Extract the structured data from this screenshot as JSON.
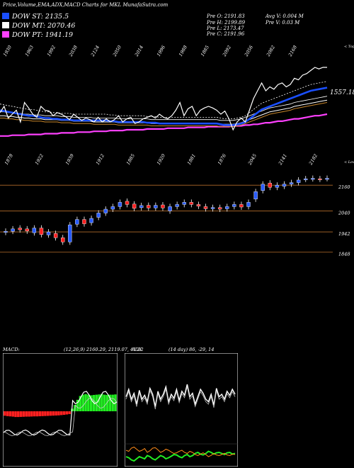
{
  "title": "Price,Volume,EMA,ADX,MACD Charts for MKL MunafaSutra.com",
  "legend": [
    {
      "text": "DOW ST: 2135.5",
      "color": "#1a4fff"
    },
    {
      "text": "DOW MT: 2070.46",
      "color": "#ffffff"
    },
    {
      "text": "DOW PT: 1941.19",
      "color": "#ff40ff"
    }
  ],
  "stats": {
    "pre_o": "Pre  O: 2191.83",
    "pre_h": "Pre  H: 2199.89",
    "pre_l": "Pre  L: 2173.47",
    "pre_c": "Pre  C: 2191.96",
    "avg_v": "Avg V: 0.004  M",
    "pre_v": "Pre  V: 0.03 M"
  },
  "colors": {
    "up": "#2a5cff",
    "down": "#ff2020",
    "ema_st": "#1a4fff",
    "ema_pt": "#ff40ff",
    "grid": "#b06a2a"
  },
  "chart_data": [
    {
      "type": "line",
      "name": "EMA panel",
      "top_labels": [
        "1930",
        "1963",
        "1992",
        "2038",
        "2124",
        "2050",
        "2014",
        "1996",
        "1988",
        "1885",
        "2092",
        "2056",
        "2082",
        "2168"
      ],
      "bottom_labels": [
        "1878",
        "1922",
        "1939",
        "1912",
        "1885",
        "1920",
        "1881",
        "1876",
        "2045",
        "2141",
        "2182"
      ],
      "value_label": "1557.18",
      "axis_top_label": "< Tops",
      "axis_bottom_label": "< Lows",
      "series": [
        {
          "name": "price",
          "values": [
            0.42,
            0.5,
            0.35,
            0.4,
            0.45,
            0.3,
            0.55,
            0.48,
            0.4,
            0.36,
            0.5,
            0.45,
            0.44,
            0.38,
            0.42,
            0.4,
            0.37,
            0.33,
            0.4,
            0.36,
            0.32,
            0.35,
            0.33,
            0.3,
            0.36,
            0.3,
            0.34,
            0.3,
            0.33,
            0.38,
            0.3,
            0.34,
            0.36,
            0.28,
            0.3,
            0.34,
            0.36,
            0.38,
            0.35,
            0.4,
            0.36,
            0.34,
            0.38,
            0.45,
            0.55,
            0.38,
            0.47,
            0.5,
            0.38,
            0.45,
            0.48,
            0.5,
            0.48,
            0.45,
            0.4,
            0.44,
            0.34,
            0.2,
            0.3,
            0.35,
            0.3,
            0.45,
            0.6,
            0.7,
            0.8,
            0.7,
            0.75,
            0.72,
            0.78,
            0.8,
            0.75,
            0.78,
            0.86,
            0.84,
            0.9,
            0.92,
            0.96,
            1.0,
            0.98,
            1.0,
            1.0
          ]
        },
        {
          "name": "ema_st",
          "values": [
            0.45,
            0.44,
            0.43,
            0.42,
            0.41,
            0.4,
            0.39,
            0.38,
            0.38,
            0.37,
            0.36,
            0.35,
            0.35,
            0.34,
            0.34,
            0.33,
            0.33,
            0.33,
            0.32,
            0.32,
            0.32,
            0.32,
            0.32,
            0.32,
            0.32,
            0.32,
            0.32,
            0.31,
            0.31,
            0.3,
            0.3,
            0.3,
            0.3,
            0.3,
            0.3,
            0.3,
            0.29,
            0.29,
            0.29,
            0.28,
            0.28,
            0.28,
            0.28,
            0.28,
            0.28,
            0.28,
            0.28,
            0.28,
            0.28,
            0.28,
            0.28,
            0.28,
            0.28,
            0.28,
            0.27,
            0.26,
            0.26,
            0.26,
            0.27,
            0.28,
            0.3,
            0.34,
            0.38,
            0.42,
            0.46,
            0.48,
            0.5,
            0.52,
            0.54,
            0.56,
            0.58,
            0.6,
            0.62,
            0.64,
            0.66,
            0.68,
            0.7,
            0.71,
            0.72,
            0.73,
            0.74
          ]
        },
        {
          "name": "ema_mt",
          "values": [
            0.38,
            0.38,
            0.37,
            0.37,
            0.36,
            0.36,
            0.35,
            0.35,
            0.34,
            0.34,
            0.34,
            0.33,
            0.33,
            0.33,
            0.33,
            0.32,
            0.32,
            0.32,
            0.31,
            0.31,
            0.31,
            0.31,
            0.31,
            0.3,
            0.3,
            0.3,
            0.3,
            0.3,
            0.3,
            0.29,
            0.29,
            0.29,
            0.29,
            0.29,
            0.29,
            0.29,
            0.29,
            0.28,
            0.28,
            0.28,
            0.28,
            0.28,
            0.28,
            0.28,
            0.28,
            0.28,
            0.28,
            0.28,
            0.28,
            0.28,
            0.28,
            0.28,
            0.28,
            0.28,
            0.27,
            0.27,
            0.27,
            0.27,
            0.28,
            0.29,
            0.31,
            0.33,
            0.35,
            0.37,
            0.39,
            0.41,
            0.43,
            0.44,
            0.45,
            0.46,
            0.47,
            0.48,
            0.5,
            0.51,
            0.52,
            0.53,
            0.54,
            0.55,
            0.56,
            0.57,
            0.58
          ]
        },
        {
          "name": "ema_pt",
          "values": [
            0.12,
            0.12,
            0.12,
            0.13,
            0.13,
            0.13,
            0.13,
            0.14,
            0.14,
            0.14,
            0.14,
            0.15,
            0.15,
            0.15,
            0.15,
            0.16,
            0.16,
            0.16,
            0.16,
            0.17,
            0.17,
            0.17,
            0.17,
            0.18,
            0.18,
            0.18,
            0.18,
            0.19,
            0.19,
            0.19,
            0.19,
            0.2,
            0.2,
            0.2,
            0.2,
            0.2,
            0.21,
            0.21,
            0.21,
            0.21,
            0.21,
            0.22,
            0.22,
            0.22,
            0.22,
            0.22,
            0.23,
            0.23,
            0.23,
            0.23,
            0.23,
            0.24,
            0.24,
            0.24,
            0.24,
            0.24,
            0.24,
            0.25,
            0.25,
            0.25,
            0.26,
            0.26,
            0.27,
            0.27,
            0.28,
            0.29,
            0.29,
            0.3,
            0.31,
            0.31,
            0.32,
            0.33,
            0.34,
            0.34,
            0.35,
            0.36,
            0.37,
            0.38,
            0.38,
            0.39,
            0.4
          ]
        }
      ]
    },
    {
      "type": "candlestick",
      "name": "price panel",
      "yticks": [
        "2160",
        "2040",
        "1942",
        "1848"
      ],
      "candles": [
        {
          "o": 1940,
          "c": 1945,
          "up": true
        },
        {
          "o": 1945,
          "c": 1956,
          "up": true
        },
        {
          "o": 1960,
          "c": 1952,
          "up": false
        },
        {
          "o": 1956,
          "c": 1946,
          "up": false
        },
        {
          "o": 1938,
          "c": 1960,
          "up": true
        },
        {
          "o": 1960,
          "c": 1930,
          "up": false
        },
        {
          "o": 1928,
          "c": 1942,
          "up": true
        },
        {
          "o": 1935,
          "c": 1915,
          "up": false
        },
        {
          "o": 1915,
          "c": 1895,
          "up": false
        },
        {
          "o": 1895,
          "c": 1975,
          "up": true
        },
        {
          "o": 1978,
          "c": 2000,
          "up": true
        },
        {
          "o": 2000,
          "c": 1980,
          "up": false
        },
        {
          "o": 1985,
          "c": 2005,
          "up": true
        },
        {
          "o": 2010,
          "c": 2030,
          "up": true
        },
        {
          "o": 2030,
          "c": 2048,
          "up": true
        },
        {
          "o": 2048,
          "c": 2060,
          "up": true
        },
        {
          "o": 2060,
          "c": 2080,
          "up": true
        },
        {
          "o": 2085,
          "c": 2070,
          "up": false
        },
        {
          "o": 2072,
          "c": 2052,
          "up": false
        },
        {
          "o": 2055,
          "c": 2065,
          "up": true
        },
        {
          "o": 2066,
          "c": 2054,
          "up": false
        },
        {
          "o": 2054,
          "c": 2066,
          "up": true
        },
        {
          "o": 2068,
          "c": 2054,
          "up": false
        },
        {
          "o": 2040,
          "c": 2060,
          "up": true
        },
        {
          "o": 2060,
          "c": 2070,
          "up": true
        },
        {
          "o": 2070,
          "c": 2080,
          "up": true
        },
        {
          "o": 2080,
          "c": 2070,
          "up": false
        },
        {
          "o": 2070,
          "c": 2062,
          "up": false
        },
        {
          "o": 2060,
          "c": 2050,
          "up": false
        },
        {
          "o": 2050,
          "c": 2056,
          "up": true
        },
        {
          "o": 2056,
          "c": 2048,
          "up": false
        },
        {
          "o": 2050,
          "c": 2060,
          "up": true
        },
        {
          "o": 2060,
          "c": 2070,
          "up": true
        },
        {
          "o": 2070,
          "c": 2058,
          "up": false
        },
        {
          "o": 2060,
          "c": 2080,
          "up": true
        },
        {
          "o": 2095,
          "c": 2130,
          "up": true
        },
        {
          "o": 2135,
          "c": 2165,
          "up": true
        },
        {
          "o": 2170,
          "c": 2150,
          "up": false
        },
        {
          "o": 2150,
          "c": 2160,
          "up": true
        },
        {
          "o": 2155,
          "c": 2165,
          "up": true
        },
        {
          "o": 2165,
          "c": 2172,
          "up": true
        },
        {
          "o": 2172,
          "c": 2184,
          "up": true
        },
        {
          "o": 2188,
          "c": 2190,
          "up": true
        },
        {
          "o": 2190,
          "c": 2192,
          "up": true
        },
        {
          "o": 2190,
          "c": 2188,
          "up": false
        },
        {
          "o": 2191,
          "c": 2192,
          "up": true
        }
      ]
    },
    {
      "type": "bar",
      "name": "MACD panel",
      "label": "MACD:",
      "params": "(12,26,9) 2160.29,  2119.07,  41.22",
      "histogram": [
        -0.35,
        -0.38,
        -0.4,
        -0.42,
        -0.45,
        -0.45,
        -0.44,
        -0.43,
        -0.42,
        -0.42,
        -0.41,
        -0.4,
        -0.4,
        -0.39,
        -0.38,
        -0.37,
        -0.36,
        -0.35,
        -0.34,
        -0.33,
        -0.32,
        -0.3,
        -0.28,
        -0.25,
        -0.22,
        0.2,
        0.5,
        0.9,
        1.2,
        1.3,
        1.35,
        1.3,
        1.25,
        1.28,
        1.3,
        1.32,
        1.35,
        1.3,
        1.28,
        1.3,
        1.3,
        1.32
      ]
    },
    {
      "type": "line",
      "name": "ADX panel",
      "label": "ADX",
      "params": "(14 day) 86,  -29,  14",
      "series": [
        {
          "name": "adx",
          "values": [
            0.55,
            0.7,
            0.5,
            0.62,
            0.4,
            0.68,
            0.5,
            0.58,
            0.45,
            0.72,
            0.6,
            0.35,
            0.66,
            0.5,
            0.6,
            0.75,
            0.45,
            0.6,
            0.52,
            0.7,
            0.48,
            0.66,
            0.58,
            0.8,
            0.55,
            0.62,
            0.4,
            0.55,
            0.7,
            0.62,
            0.5,
            0.45,
            0.6,
            0.38,
            0.72,
            0.55,
            0.6,
            0.5,
            0.66,
            0.58,
            0.7,
            0.6
          ]
        },
        {
          "name": "plus",
          "values": [
            0.3,
            0.25,
            0.15,
            0.1,
            0.2,
            0.3,
            0.25,
            0.2,
            0.35,
            0.3,
            0.2,
            0.15,
            0.25,
            0.35,
            0.3,
            0.2,
            0.25,
            0.32,
            0.4,
            0.38,
            0.3,
            0.25,
            0.35,
            0.4,
            0.3,
            0.35,
            0.45,
            0.5,
            0.42,
            0.38,
            0.45,
            0.55,
            0.5,
            0.42,
            0.48,
            0.5,
            0.45,
            0.4,
            0.48,
            0.5,
            0.42,
            0.45
          ]
        },
        {
          "name": "minus",
          "values": [
            0.6,
            0.55,
            0.7,
            0.75,
            0.65,
            0.55,
            0.6,
            0.68,
            0.5,
            0.58,
            0.7,
            0.72,
            0.62,
            0.5,
            0.56,
            0.65,
            0.6,
            0.52,
            0.45,
            0.48,
            0.55,
            0.6,
            0.5,
            0.45,
            0.55,
            0.5,
            0.4,
            0.35,
            0.42,
            0.48,
            0.4,
            0.3,
            0.36,
            0.45,
            0.38,
            0.35,
            0.4,
            0.46,
            0.38,
            0.35,
            0.42,
            0.4
          ]
        }
      ]
    }
  ]
}
